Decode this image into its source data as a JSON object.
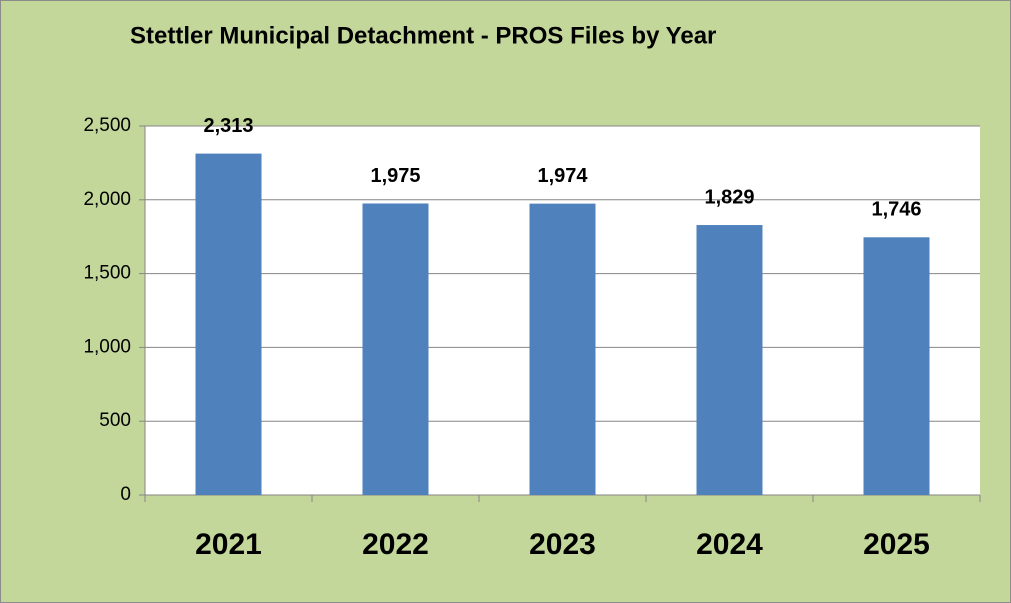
{
  "chart_data": {
    "type": "bar",
    "title": "Stettler Municipal Detachment - PROS Files by Year",
    "categories": [
      "2021",
      "2022",
      "2023",
      "2024",
      "2025"
    ],
    "values": [
      2313,
      1975,
      1974,
      1829,
      1746
    ],
    "value_labels": [
      "2,313",
      "1,975",
      "1,974",
      "1,829",
      "1,746"
    ],
    "color": "#4f81bd",
    "ylim": [
      0,
      2500
    ],
    "yticks": [
      0,
      500,
      {
        "value": 1000,
        "label": "1,000"
      },
      {
        "value": 1500,
        "label": "1,500"
      },
      {
        "value": 2000,
        "label": "2,000"
      },
      {
        "value": 2500,
        "label": "2,500"
      }
    ],
    "grid": true
  }
}
